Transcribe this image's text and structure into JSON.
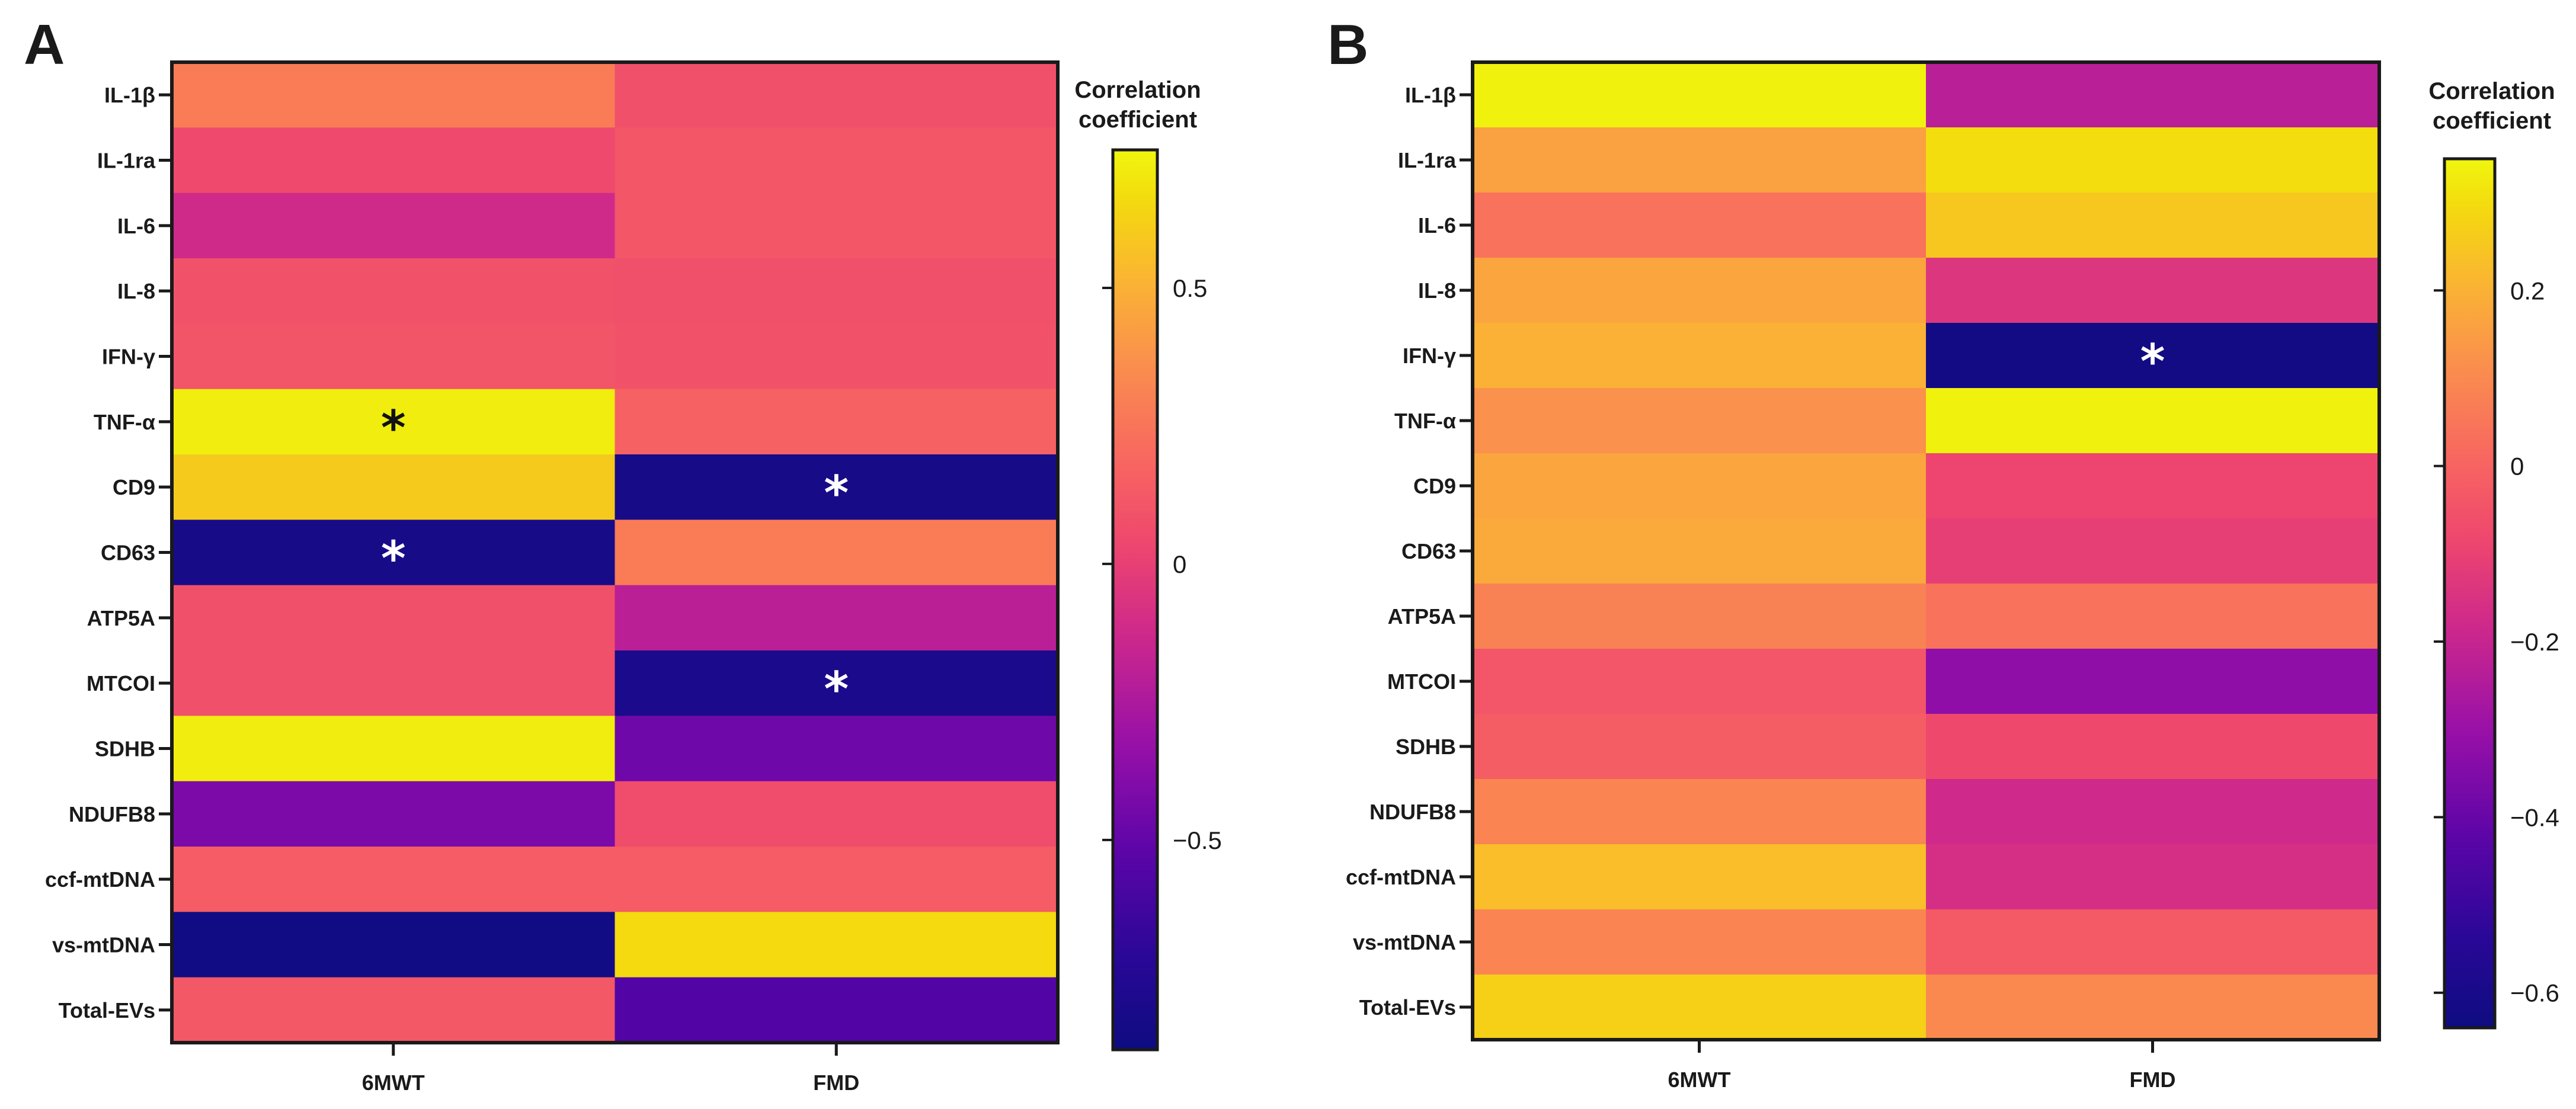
{
  "chart_data": [
    {
      "type": "heatmap",
      "panel": "A",
      "legend_title": [
        "Correlation",
        "coefficient"
      ],
      "columns": [
        "6MWT",
        "FMD"
      ],
      "rows": [
        "IL-1β",
        "IL-1ra",
        "IL-6",
        "IL-8",
        "IFN-γ",
        "TNF-α",
        "CD9",
        "CD63",
        "ATP5A",
        "MTCOI",
        "SDHB",
        "NDUFB8",
        "ccf-mtDNA",
        "vs-mtDNA",
        "Total-EVs"
      ],
      "values": [
        [
          0.28,
          0.08
        ],
        [
          0.05,
          0.11
        ],
        [
          -0.12,
          0.11
        ],
        [
          0.09,
          0.08
        ],
        [
          0.1,
          0.09
        ],
        [
          0.72,
          0.16
        ],
        [
          0.6,
          -0.82
        ],
        [
          -0.82,
          0.28
        ],
        [
          0.08,
          -0.2
        ],
        [
          0.08,
          -0.8
        ],
        [
          0.72,
          -0.46
        ],
        [
          -0.42,
          0.06
        ],
        [
          0.14,
          0.14
        ],
        [
          -0.86,
          0.66
        ],
        [
          0.12,
          -0.56
        ]
      ],
      "significant": [
        [
          5,
          0
        ],
        [
          6,
          1
        ],
        [
          7,
          0
        ],
        [
          9,
          1
        ]
      ],
      "significance_mark": "*",
      "colorbar_range": [
        -0.88,
        0.75
      ],
      "colorbar_ticks": [
        0.5,
        0,
        -0.5
      ],
      "colorbar_tick_labels": [
        "0.5",
        "0",
        "−0.5"
      ]
    },
    {
      "type": "heatmap",
      "panel": "B",
      "legend_title": [
        "Correlation",
        "coefficient"
      ],
      "columns": [
        "6MWT",
        "FMD"
      ],
      "rows": [
        "IL-1β",
        "IL-1ra",
        "IL-6",
        "IL-8",
        "IFN-γ",
        "TNF-α",
        "CD9",
        "CD63",
        "ATP5A",
        "MTCOI",
        "SDHB",
        "NDUFB8",
        "ccf-mtDNA",
        "vs-mtDNA",
        "Total-EVs"
      ],
      "values": [
        [
          0.34,
          -0.23
        ],
        [
          0.16,
          0.3
        ],
        [
          0.04,
          0.25
        ],
        [
          0.17,
          -0.14
        ],
        [
          0.2,
          -0.62
        ],
        [
          0.12,
          0.34
        ],
        [
          0.17,
          -0.09
        ],
        [
          0.18,
          -0.11
        ],
        [
          0.08,
          0.04
        ],
        [
          -0.04,
          -0.32
        ],
        [
          -0.02,
          -0.08
        ],
        [
          0.09,
          -0.18
        ],
        [
          0.23,
          -0.16
        ],
        [
          0.09,
          -0.03
        ],
        [
          0.27,
          0.1
        ]
      ],
      "significant": [
        [
          4,
          1
        ]
      ],
      "significance_mark": "*",
      "colorbar_range": [
        -0.64,
        0.35
      ],
      "colorbar_ticks": [
        0.2,
        0,
        -0.2,
        -0.4,
        -0.6
      ],
      "colorbar_tick_labels": [
        "0.2",
        "0",
        "−0.2",
        "−0.4",
        "−0.6"
      ]
    }
  ]
}
